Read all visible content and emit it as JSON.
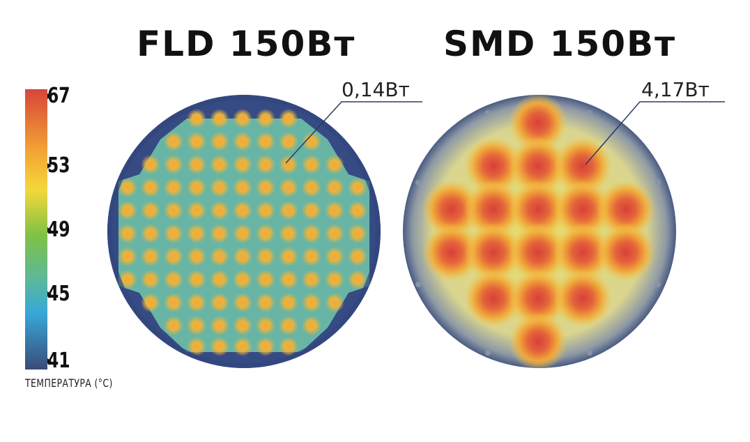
{
  "titles": {
    "left": "FLD 150Вт",
    "right": "SMD 150Вт"
  },
  "callouts": {
    "left": "0,14Вт",
    "right": "4,17Вт"
  },
  "scale": {
    "label": "ТЕМПЕРАТУРА (°C)",
    "ticks": [
      "67",
      "53",
      "49",
      "45",
      "41"
    ],
    "colors": [
      "#d7453a",
      "#f2a434",
      "#f4d83a",
      "#7fc244",
      "#5cb89c",
      "#37a8d8",
      "#3a4a78"
    ]
  }
}
